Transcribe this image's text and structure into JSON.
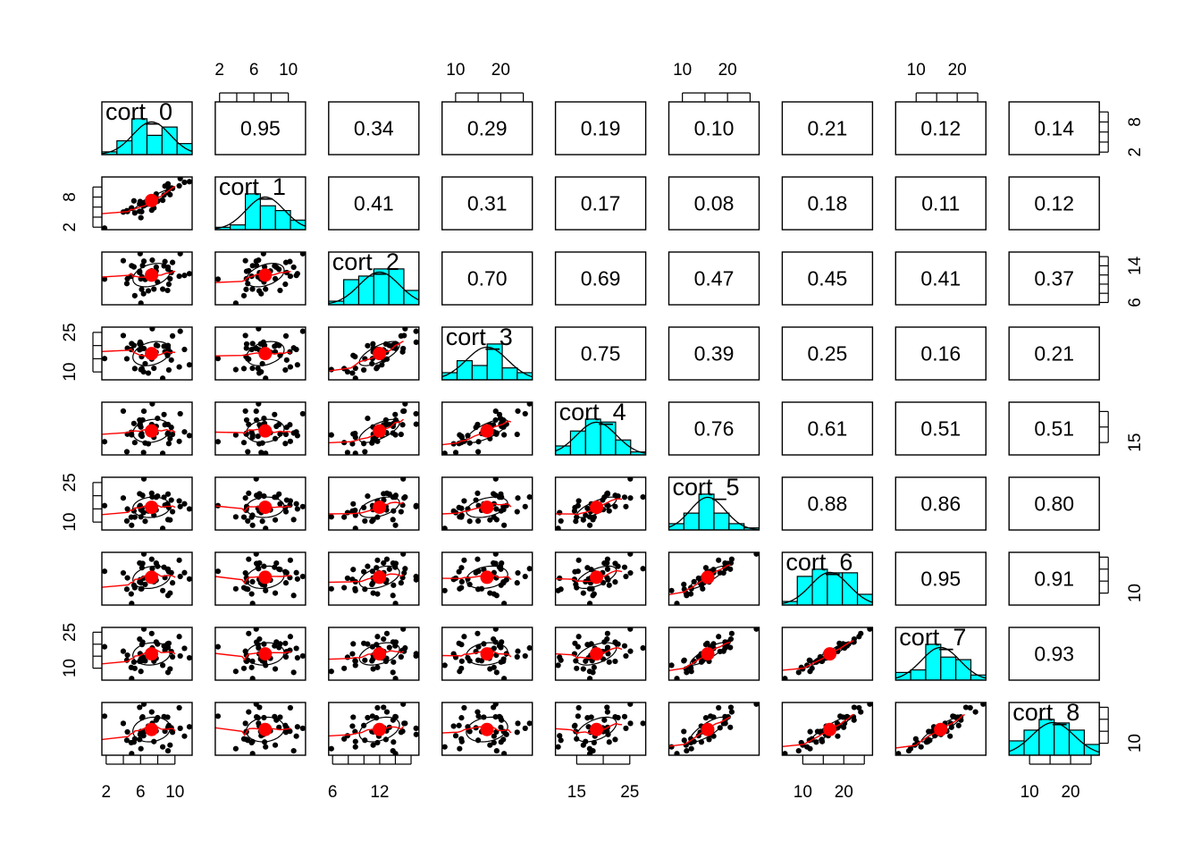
{
  "chart_data": {
    "type": "scatter-matrix",
    "title": "",
    "variables": [
      "cort_0",
      "cort_1",
      "cort_2",
      "cort_3",
      "cort_4",
      "cort_5",
      "cort_6",
      "cort_7",
      "cort_8"
    ],
    "ranges": [
      [
        1.5,
        12
      ],
      [
        1.5,
        12
      ],
      [
        5.5,
        17
      ],
      [
        7,
        27
      ],
      [
        11,
        28
      ],
      [
        7,
        27
      ],
      [
        5,
        27
      ],
      [
        5,
        27
      ],
      [
        5,
        27
      ]
    ],
    "correlations": [
      [
        "0.95",
        "0.34",
        "0.29",
        "0.19",
        "0.10",
        "0.21",
        "0.12",
        "0.14"
      ],
      [
        "0.41",
        "0.31",
        "0.17",
        "0.08",
        "0.18",
        "0.11",
        "0.12"
      ],
      [
        "0.70",
        "0.69",
        "0.47",
        "0.45",
        "0.41",
        "0.37"
      ],
      [
        "0.75",
        "0.39",
        "0.25",
        "0.16",
        "0.21"
      ],
      [
        "0.76",
        "0.61",
        "0.51",
        "0.51"
      ],
      [
        "0.88",
        "0.86",
        "0.80"
      ],
      [
        "0.95",
        "0.91"
      ],
      [
        "0.93"
      ]
    ],
    "axes": [
      {
        "side": "top",
        "var": 1,
        "ticks": [
          2,
          4,
          6,
          8,
          10
        ],
        "labels": [
          "2",
          "6",
          "10"
        ],
        "label_at": [
          2,
          6,
          10
        ]
      },
      {
        "side": "top",
        "var": 3,
        "ticks": [
          10,
          15,
          20,
          25
        ],
        "labels": [
          "10",
          "20"
        ],
        "label_at": [
          10,
          20
        ]
      },
      {
        "side": "top",
        "var": 5,
        "ticks": [
          10,
          15,
          20,
          25
        ],
        "labels": [
          "10",
          "20"
        ],
        "label_at": [
          10,
          20
        ]
      },
      {
        "side": "top",
        "var": 7,
        "ticks": [
          10,
          15,
          20,
          25
        ],
        "labels": [
          "10",
          "20"
        ],
        "label_at": [
          10,
          20
        ]
      },
      {
        "side": "bottom",
        "var": 0,
        "ticks": [
          2,
          4,
          6,
          8,
          10
        ],
        "labels": [
          "2",
          "6",
          "10"
        ],
        "label_at": [
          2,
          6,
          10
        ]
      },
      {
        "side": "bottom",
        "var": 2,
        "ticks": [
          6,
          8,
          10,
          12,
          14,
          16
        ],
        "labels": [
          "6",
          "12"
        ],
        "label_at": [
          6,
          12
        ]
      },
      {
        "side": "bottom",
        "var": 4,
        "ticks": [
          15,
          20,
          25
        ],
        "labels": [
          "15",
          "25"
        ],
        "label_at": [
          15,
          25
        ]
      },
      {
        "side": "bottom",
        "var": 6,
        "ticks": [
          10,
          15,
          20,
          25
        ],
        "labels": [
          "10",
          "20"
        ],
        "label_at": [
          10,
          20
        ]
      },
      {
        "side": "bottom",
        "var": 8,
        "ticks": [
          10,
          15,
          20,
          25
        ],
        "labels": [
          "10",
          "20"
        ],
        "label_at": [
          10,
          20
        ]
      },
      {
        "side": "left",
        "var": 1,
        "ticks": [
          2,
          4,
          6,
          8,
          10
        ],
        "labels": [
          "2",
          "8"
        ],
        "label_at": [
          2,
          8
        ]
      },
      {
        "side": "left",
        "var": 3,
        "ticks": [
          10,
          15,
          20,
          25
        ],
        "labels": [
          "10",
          "25"
        ],
        "label_at": [
          10,
          25
        ]
      },
      {
        "side": "left",
        "var": 5,
        "ticks": [
          10,
          15,
          20,
          25
        ],
        "labels": [
          "10",
          "25"
        ],
        "label_at": [
          10,
          25
        ]
      },
      {
        "side": "left",
        "var": 7,
        "ticks": [
          10,
          15,
          20,
          25
        ],
        "labels": [
          "10",
          "25"
        ],
        "label_at": [
          10,
          25
        ]
      },
      {
        "side": "right",
        "var": 0,
        "ticks": [
          2,
          4,
          6,
          8,
          10
        ],
        "labels": [
          "2",
          "8"
        ],
        "label_at": [
          2,
          8
        ]
      },
      {
        "side": "right",
        "var": 2,
        "ticks": [
          6,
          8,
          10,
          12,
          14,
          16
        ],
        "labels": [
          "6",
          "14"
        ],
        "label_at": [
          6,
          14
        ]
      },
      {
        "side": "right",
        "var": 4,
        "ticks": [
          15,
          20,
          25
        ],
        "labels": [
          "15"
        ],
        "label_at": [
          15
        ]
      },
      {
        "side": "right",
        "var": 6,
        "ticks": [
          10,
          15,
          20,
          25
        ],
        "labels": [
          "10"
        ],
        "label_at": [
          10
        ]
      },
      {
        "side": "right",
        "var": 8,
        "ticks": [
          10,
          15,
          20,
          25
        ],
        "labels": [
          "10"
        ],
        "label_at": [
          10
        ]
      }
    ],
    "colors": {
      "histogram": "#00FFFF",
      "fit": "#FF0000",
      "points": "#000000"
    }
  }
}
